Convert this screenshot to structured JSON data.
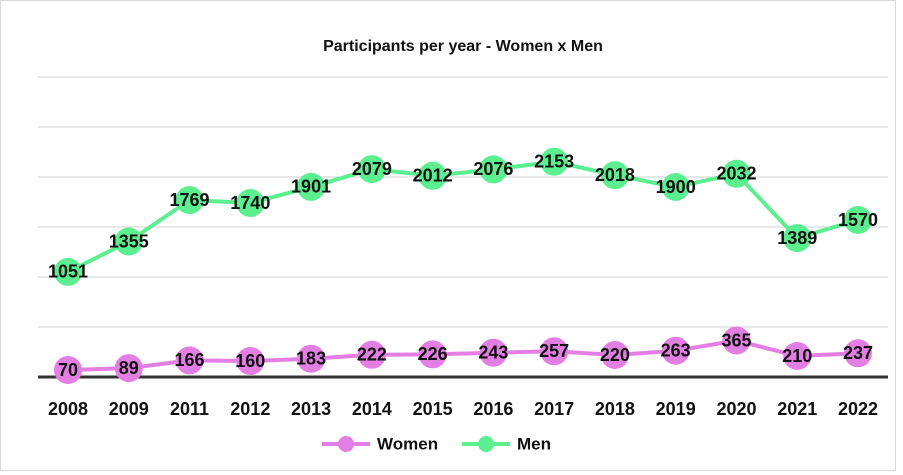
{
  "chart_data": {
    "type": "line",
    "title": "Participants per year - Women x Men",
    "categories": [
      "2008",
      "2009",
      "2011",
      "2012",
      "2013",
      "2014",
      "2015",
      "2016",
      "2017",
      "2018",
      "2019",
      "2020",
      "2021",
      "2022"
    ],
    "series": [
      {
        "name": "Women",
        "color": "#e37ee3",
        "values": [
          70,
          89,
          166,
          160,
          183,
          222,
          226,
          243,
          257,
          220,
          263,
          365,
          210,
          237
        ]
      },
      {
        "name": "Men",
        "color": "#5cef90",
        "values": [
          1051,
          1355,
          1769,
          1740,
          1901,
          2079,
          2012,
          2076,
          2153,
          2018,
          1900,
          2032,
          1389,
          1570
        ]
      }
    ],
    "ylim": [
      0,
      3000
    ],
    "yticks": [
      0,
      500,
      1000,
      1500,
      2000,
      2500,
      3000
    ],
    "grid": true,
    "legend": "bottom"
  }
}
